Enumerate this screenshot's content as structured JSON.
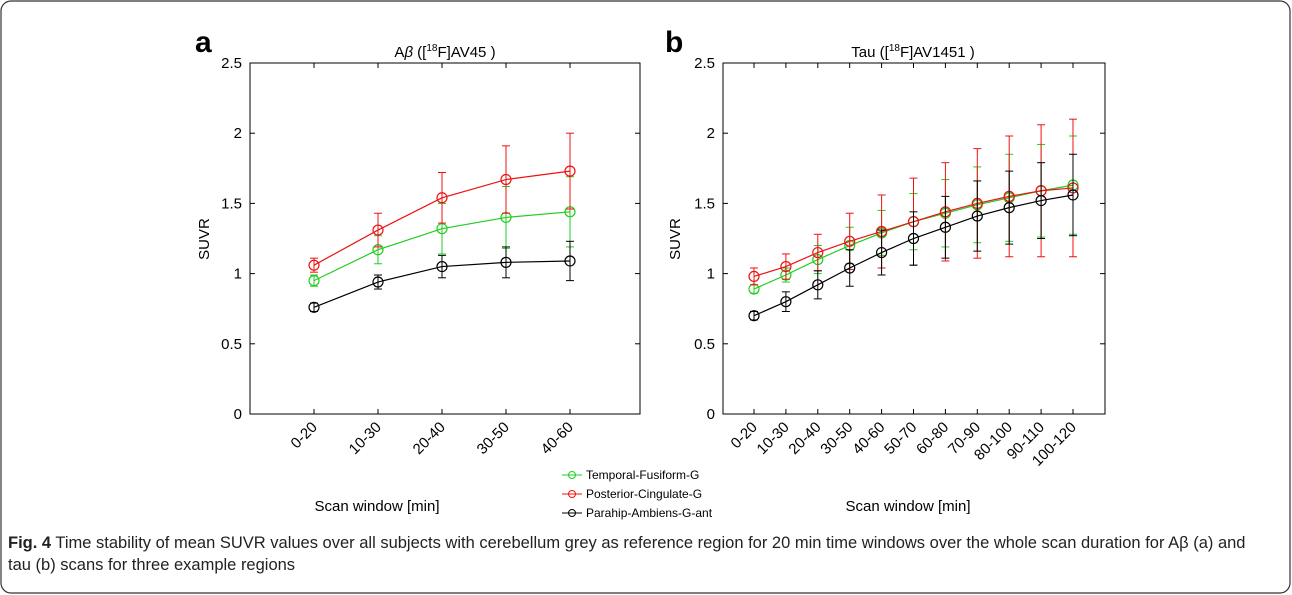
{
  "figure": {
    "caption_label": "Fig. 4",
    "caption_text": "Time stability of mean SUVR values over all subjects with cerebellum grey as reference region for 20 min time windows over the whole scan duration for Aβ (a) and tau (b) scans for three example regions"
  },
  "legend": {
    "items": [
      "Temporal-Fusiform-G",
      "Posterior-Cingulate-G",
      "Parahip-Ambiens-G-ant"
    ]
  },
  "colors": {
    "green": "#22cc22",
    "red": "#ee1111",
    "black": "#000000"
  },
  "chart_data": [
    {
      "type": "line",
      "panel_letter": "a",
      "title": "Aβ ([18F]AV45 )",
      "xlabel": "Scan window [min]",
      "ylabel": "SUVR",
      "ylim": [
        0,
        2.5
      ],
      "yticks": [
        "0",
        "0.5",
        "1",
        "1.5",
        "2",
        "2.5"
      ],
      "categories": [
        "0-20",
        "10-30",
        "20-40",
        "30-50",
        "40-60"
      ],
      "grid": false,
      "series": [
        {
          "name": "Temporal-Fusiform-G",
          "color": "#22cc22",
          "values": [
            0.95,
            1.17,
            1.32,
            1.4,
            1.44
          ],
          "errors": [
            0.04,
            0.1,
            0.18,
            0.22,
            0.25
          ]
        },
        {
          "name": "Posterior-Cingulate-G",
          "color": "#ee1111",
          "values": [
            1.06,
            1.31,
            1.54,
            1.67,
            1.73
          ],
          "errors": [
            0.05,
            0.12,
            0.18,
            0.24,
            0.27
          ]
        },
        {
          "name": "Parahip-Ambiens-G-ant",
          "color": "#000000",
          "values": [
            0.76,
            0.94,
            1.05,
            1.08,
            1.09
          ],
          "errors": [
            0.03,
            0.05,
            0.08,
            0.11,
            0.14
          ]
        }
      ]
    },
    {
      "type": "line",
      "panel_letter": "b",
      "title": "Tau ([18F]AV1451 )",
      "xlabel": "Scan window [min]",
      "ylabel": "SUVR",
      "ylim": [
        0,
        2.5
      ],
      "yticks": [
        "0",
        "0.5",
        "1",
        "1.5",
        "2",
        "2.5"
      ],
      "categories": [
        "0-20",
        "10-30",
        "20-40",
        "30-50",
        "40-60",
        "50-70",
        "60-80",
        "70-90",
        "80-100",
        "90-110",
        "100-120"
      ],
      "grid": false,
      "series": [
        {
          "name": "Temporal-Fusiform-G",
          "color": "#22cc22",
          "values": [
            0.89,
            0.99,
            1.1,
            1.2,
            1.29,
            1.37,
            1.43,
            1.49,
            1.54,
            1.59,
            1.63
          ],
          "errors": [
            0.03,
            0.05,
            0.1,
            0.13,
            0.16,
            0.2,
            0.24,
            0.27,
            0.31,
            0.33,
            0.35
          ]
        },
        {
          "name": "Posterior-Cingulate-G",
          "color": "#ee1111",
          "values": [
            0.98,
            1.05,
            1.15,
            1.23,
            1.3,
            1.37,
            1.44,
            1.5,
            1.55,
            1.59,
            1.61
          ],
          "errors": [
            0.06,
            0.09,
            0.13,
            0.2,
            0.26,
            0.31,
            0.35,
            0.39,
            0.43,
            0.47,
            0.49
          ]
        },
        {
          "name": "Parahip-Ambiens-G-ant",
          "color": "#000000",
          "values": [
            0.7,
            0.8,
            0.92,
            1.04,
            1.15,
            1.25,
            1.33,
            1.41,
            1.47,
            1.52,
            1.56
          ],
          "errors": [
            0.03,
            0.07,
            0.1,
            0.13,
            0.16,
            0.19,
            0.22,
            0.25,
            0.26,
            0.27,
            0.29
          ]
        }
      ]
    }
  ]
}
